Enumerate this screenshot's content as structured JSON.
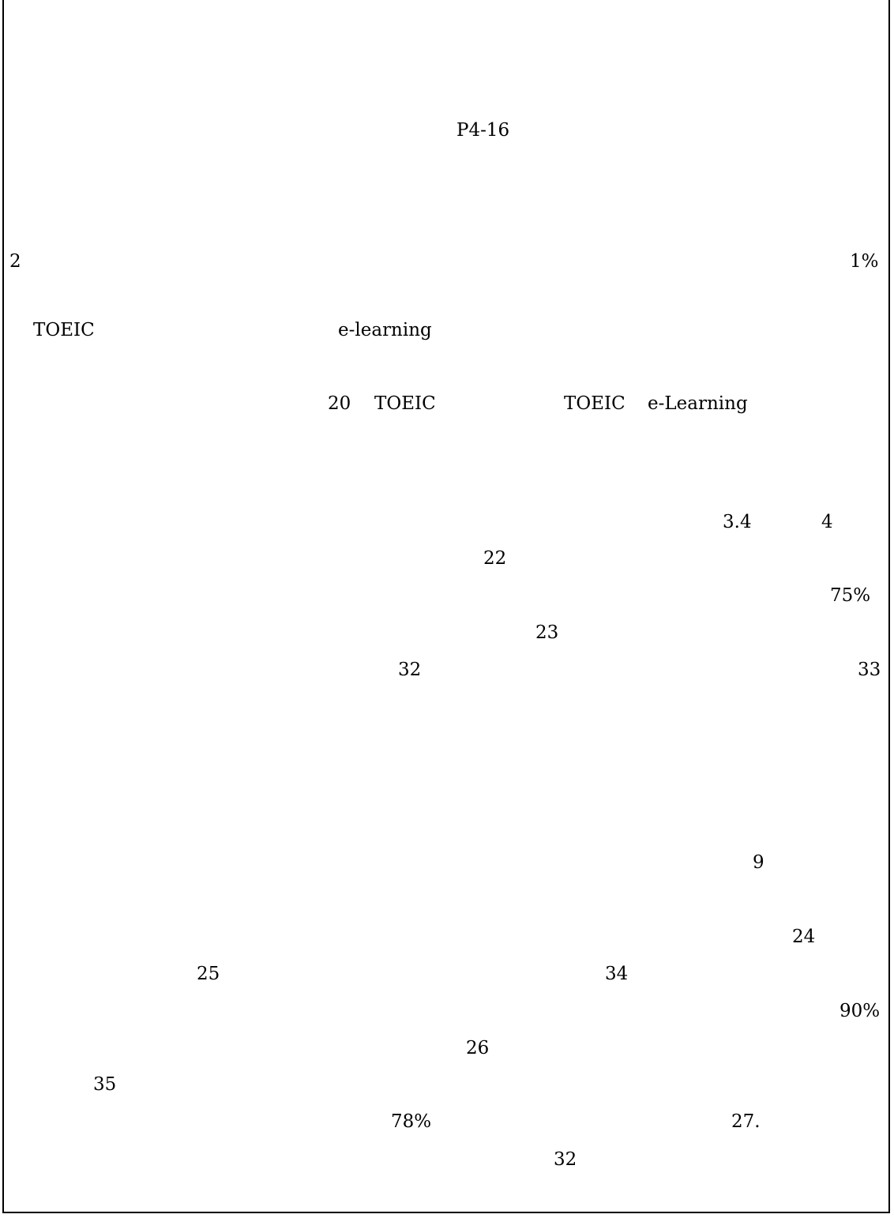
{
  "lines": {
    "page_ref": "P4-16",
    "l1_left": "2",
    "l1_right": "1%",
    "l2_a": "TOEIC",
    "l2_b": "e-learning",
    "l3_a": "20",
    "l3_b": "TOEIC",
    "l3_c": "TOEIC",
    "l3_d": "e-Learning",
    "l4_a": "3.4",
    "l4_b": "4",
    "l5": "22",
    "l6": "75%",
    "l7": "23",
    "l8_a": "32",
    "l8_b": "33",
    "l9": "9",
    "l10": "24",
    "l11_a": "25",
    "l11_b": "34",
    "l12": "90%",
    "l13": "26",
    "l14": "35",
    "l15_a": "78%",
    "l15_b": "27.",
    "l16": "32"
  }
}
